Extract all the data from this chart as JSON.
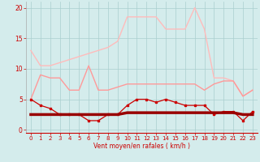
{
  "x": [
    0,
    1,
    2,
    3,
    4,
    5,
    6,
    7,
    8,
    9,
    10,
    11,
    12,
    13,
    14,
    15,
    16,
    17,
    18,
    19,
    20,
    21,
    22,
    23
  ],
  "line_lightest": [
    13.0,
    10.5,
    10.5,
    11.0,
    11.5,
    12.0,
    12.5,
    13.0,
    13.5,
    14.5,
    18.5,
    18.5,
    18.5,
    18.5,
    16.5,
    16.5,
    16.5,
    20.0,
    16.5,
    8.5,
    8.5,
    8.0,
    5.5,
    6.5
  ],
  "line_medium": [
    5.0,
    9.0,
    8.5,
    8.5,
    6.5,
    6.5,
    10.5,
    6.5,
    6.5,
    7.0,
    7.5,
    7.5,
    7.5,
    7.5,
    7.5,
    7.5,
    7.5,
    7.5,
    6.5,
    7.5,
    8.0,
    8.0,
    5.5,
    6.5
  ],
  "line_dark_marker": [
    5.0,
    4.0,
    3.5,
    2.5,
    2.5,
    2.5,
    1.5,
    1.5,
    2.5,
    2.5,
    4.0,
    5.0,
    5.0,
    4.5,
    5.0,
    4.5,
    4.0,
    4.0,
    4.0,
    2.5,
    3.0,
    3.0,
    1.5,
    3.0
  ],
  "line_flat": [
    2.5,
    2.5,
    2.5,
    2.5,
    2.5,
    2.5,
    2.5,
    2.5,
    2.5,
    2.5,
    2.8,
    2.8,
    2.8,
    2.8,
    2.8,
    2.8,
    2.8,
    2.8,
    2.8,
    2.8,
    2.8,
    2.8,
    2.5,
    2.5
  ],
  "bg_color": "#d4ecec",
  "grid_color": "#aacfcf",
  "color_lightest": "#ffbbbb",
  "color_medium": "#ff9999",
  "color_dark": "#cc0000",
  "color_flat": "#990000",
  "xlabel": "Vent moyen/en rafales ( km/h )",
  "ylim": [
    -0.5,
    21
  ],
  "xlim": [
    -0.5,
    23.5
  ],
  "yticks": [
    0,
    5,
    10,
    15,
    20
  ],
  "xticks": [
    0,
    1,
    2,
    3,
    4,
    5,
    6,
    7,
    8,
    9,
    10,
    11,
    12,
    13,
    14,
    15,
    16,
    17,
    18,
    19,
    20,
    21,
    22,
    23
  ]
}
